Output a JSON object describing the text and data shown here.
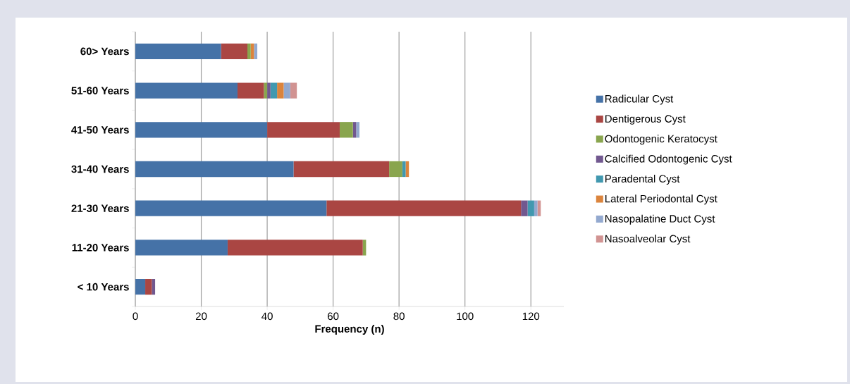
{
  "chart_data": {
    "type": "bar",
    "orientation": "horizontal",
    "stacked": true,
    "categories": [
      "60> Years",
      "51-60 Years",
      "41-50 Years",
      "31-40 Years",
      "21-30 Years",
      "11-20 Years",
      "< 10 Years"
    ],
    "series": [
      {
        "name": "Radicular Cyst",
        "color": "#4572a7",
        "values": [
          26,
          31,
          40,
          48,
          58,
          28,
          3
        ]
      },
      {
        "name": "Dentigerous Cyst",
        "color": "#aa4643",
        "values": [
          8,
          8,
          22,
          29,
          59,
          41,
          2
        ]
      },
      {
        "name": "Odontogenic Keratocyst",
        "color": "#89a54e",
        "values": [
          1,
          1,
          4,
          4,
          0,
          1,
          0
        ]
      },
      {
        "name": "Calcified Odontogenic Cyst",
        "color": "#71588f",
        "values": [
          0,
          1,
          1,
          0,
          2,
          0,
          1
        ]
      },
      {
        "name": "Paradental Cyst",
        "color": "#4198af",
        "values": [
          0,
          2,
          0,
          1,
          2,
          0,
          0
        ]
      },
      {
        "name": "Lateral Periodontal Cyst",
        "color": "#db843d",
        "values": [
          1,
          2,
          0,
          1,
          0,
          0,
          0
        ]
      },
      {
        "name": "Nasopalatine Duct Cyst",
        "color": "#93a9cf",
        "values": [
          1,
          2,
          1,
          0,
          1,
          0,
          0
        ]
      },
      {
        "name": "Nasoalveolar Cyst",
        "color": "#d19392",
        "values": [
          0,
          2,
          0,
          0,
          1,
          0,
          0
        ]
      }
    ],
    "xlim": [
      0,
      130
    ],
    "xticks": [
      0,
      20,
      40,
      60,
      80,
      100,
      120
    ],
    "xlabel": "Frequency (n)",
    "grid": "x",
    "legend": "right"
  }
}
